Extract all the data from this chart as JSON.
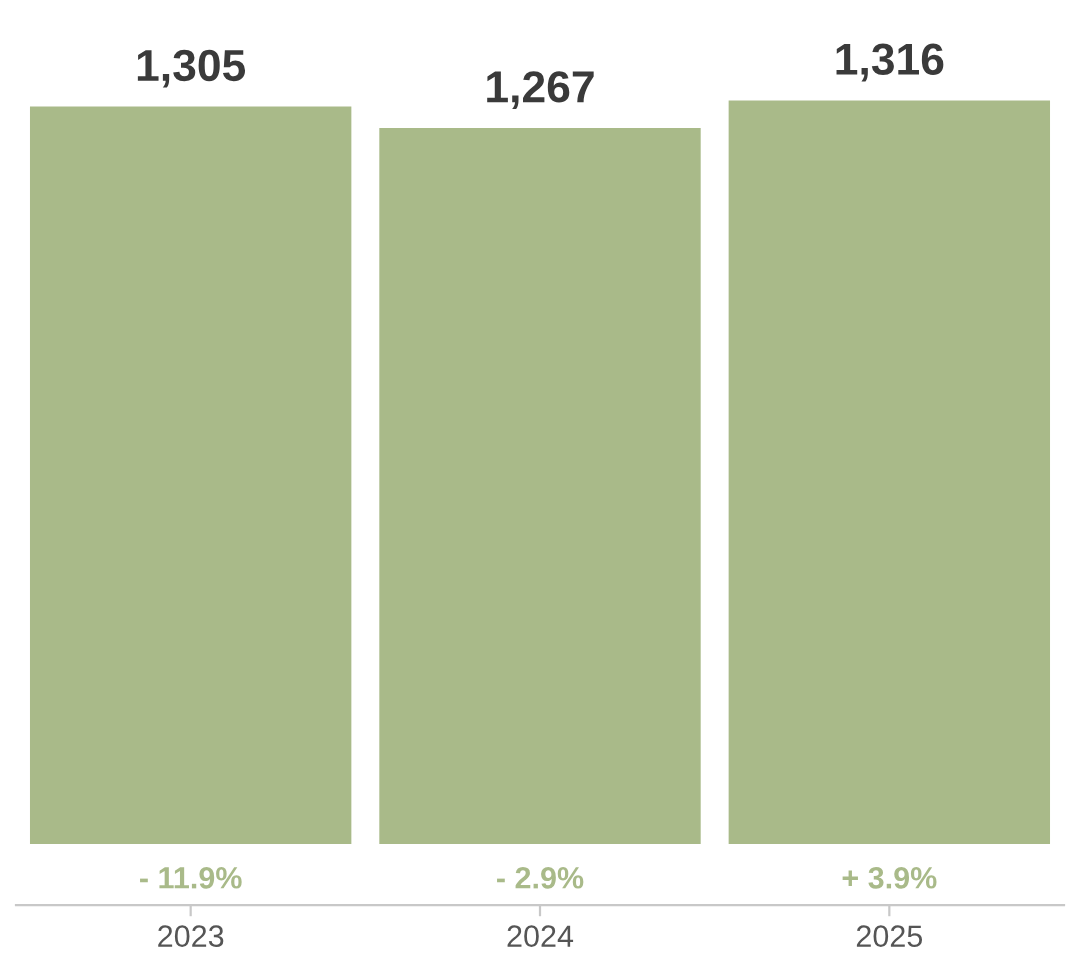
{
  "chart_data": {
    "type": "bar",
    "categories": [
      "2023",
      "2024",
      "2025"
    ],
    "values": [
      1305,
      1267,
      1316
    ],
    "color": "#a9ba89",
    "value_labels": [
      "1,305",
      "1,267",
      "1,316"
    ],
    "tick_labels": "x",
    "grid": false,
    "legend": false,
    "annotations": [
      "- 11.9%",
      "- 2.9%",
      "+ 3.9%"
    ]
  }
}
